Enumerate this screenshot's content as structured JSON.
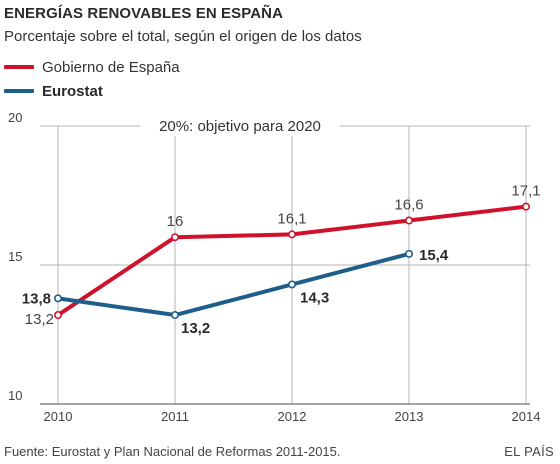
{
  "header": {
    "title": "ENERGÍAS RENOVABLES EN ESPAÑA",
    "subtitle": "Porcentaje sobre el total, según el origen de los datos"
  },
  "chart_data": {
    "type": "line",
    "x": [
      "2010",
      "2011",
      "2012",
      "2013",
      "2014"
    ],
    "ylim": [
      10,
      20
    ],
    "yticks": [
      10,
      15,
      20
    ],
    "grid": true,
    "legend": "top-left",
    "series": [
      {
        "name": "Gobierno de España",
        "color": "#d0112b",
        "x": [
          "2010",
          "2011",
          "2012",
          "2013",
          "2014"
        ],
        "values": [
          13.2,
          16,
          16.1,
          16.6,
          17.1
        ],
        "labels": [
          "13,2",
          "16",
          "16,1",
          "16,6",
          "17,1"
        ]
      },
      {
        "name": "Eurostat",
        "color": "#1d5f8a",
        "x": [
          "2010",
          "2011",
          "2012",
          "2013"
        ],
        "values": [
          13.8,
          13.2,
          14.3,
          15.4
        ],
        "labels": [
          "13,8",
          "13,2",
          "14,3",
          "15,4"
        ]
      }
    ],
    "annotations": [
      {
        "text": "20%: objetivo para 2020",
        "y": 20
      }
    ]
  },
  "footer": {
    "source": "Fuente: Eurostat y Plan Nacional de Reformas 2011-2015.",
    "brand": "EL PAÍS"
  }
}
